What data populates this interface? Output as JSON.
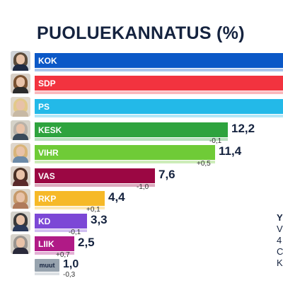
{
  "chart_data": {
    "type": "bar",
    "orientation": "horizontal",
    "title": "PUOLUEKANNATUS (%)",
    "categories": [
      "KOK",
      "SDP",
      "PS",
      "KESK",
      "VIHR",
      "VAS",
      "RKP",
      "KD",
      "LIIK",
      "muut"
    ],
    "values": [
      null,
      null,
      null,
      12.2,
      11.4,
      7.6,
      4.4,
      3.3,
      2.5,
      1.0
    ],
    "value_labels": [
      "",
      "",
      "",
      "12,2",
      "11,4",
      "7,6",
      "4,4",
      "3,3",
      "2,5",
      "1,0"
    ],
    "change_labels": [
      "",
      "",
      "",
      "-0,1",
      "+0,5",
      "-1,0",
      "+0,1",
      "-0,1",
      "+0,7",
      "-0,3"
    ],
    "bar_colors": [
      "#0b58c7",
      "#f2333f",
      "#23b9e8",
      "#2ea33e",
      "#6fcb37",
      "#9b0743",
      "#f6b928",
      "#7c48d6",
      "#b01a86",
      "#97a3ae"
    ],
    "grid": false
  },
  "side_text": [
    "Y",
    "V",
    "4",
    "C",
    "K"
  ]
}
